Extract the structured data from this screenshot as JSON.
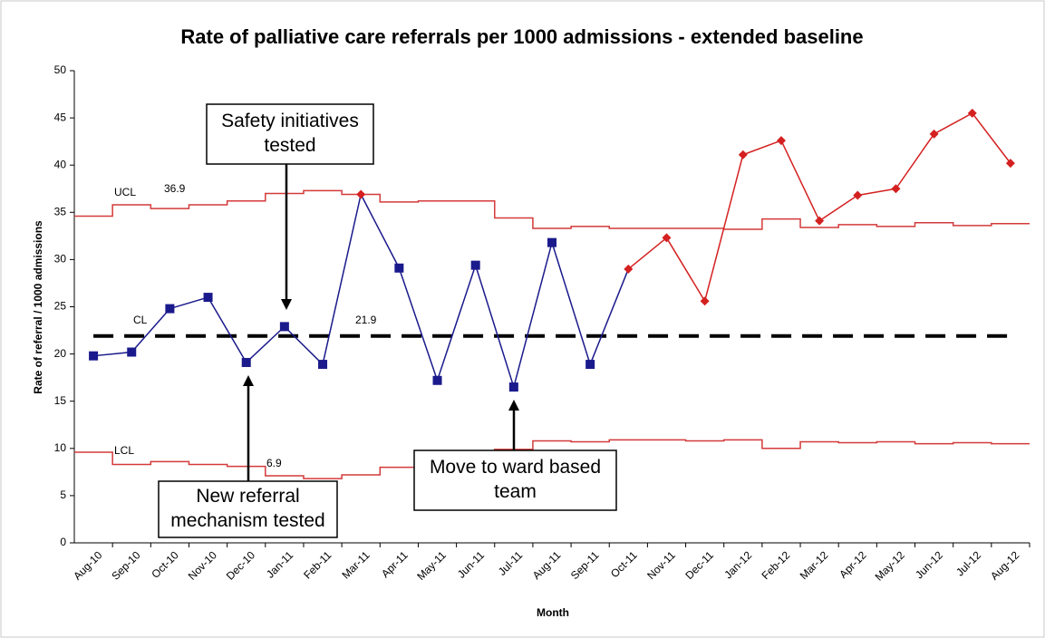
{
  "chart_data": {
    "type": "line",
    "title": "Rate of palliative care referrals per 1000 admissions - extended baseline",
    "x_label": "Month",
    "y_label": "Rate of referral / 1000 admissions",
    "categories": [
      "Aug-10",
      "Sep-10",
      "Oct-10",
      "Nov-10",
      "Dec-10",
      "Jan-11",
      "Feb-11",
      "Mar-11",
      "Apr-11",
      "May-11",
      "Jun-11",
      "Jul-11",
      "Aug-11",
      "Sep-11",
      "Oct-11",
      "Nov-11",
      "Dec-11",
      "Jan-12",
      "Feb-12",
      "Mar-12",
      "Apr-12",
      "May-12",
      "Jun-12",
      "Jul-12",
      "Aug-12"
    ],
    "series": [
      {
        "color": "#1a1a8c",
        "signal_color": "#d42020",
        "values": [
          19.8,
          20.2,
          24.8,
          26.0,
          19.1,
          22.9,
          18.9,
          36.9,
          29.1,
          17.2,
          29.4,
          16.5,
          31.8,
          18.9,
          29.0,
          32.3,
          25.6,
          41.1,
          42.6,
          34.1,
          36.8,
          37.5,
          43.3,
          45.5,
          40.2
        ],
        "signal": [
          false,
          false,
          false,
          false,
          false,
          false,
          false,
          true,
          false,
          false,
          false,
          false,
          false,
          false,
          true,
          true,
          true,
          true,
          true,
          true,
          true,
          true,
          true,
          true,
          true
        ]
      }
    ],
    "control_limits": {
      "color": "#d43a3a",
      "ucl": {
        "label": "UCL",
        "value_label": "36.9",
        "values": [
          34.6,
          35.8,
          35.4,
          35.8,
          36.2,
          37.0,
          37.3,
          36.9,
          36.1,
          36.2,
          36.2,
          34.4,
          33.3,
          33.5,
          33.3,
          33.3,
          33.3,
          33.2,
          34.3,
          33.4,
          33.7,
          33.5,
          33.9,
          33.6,
          33.8
        ]
      },
      "lcl": {
        "label": "LCL",
        "value_label": "6.9",
        "values": [
          9.6,
          8.3,
          8.6,
          8.3,
          8.1,
          7.1,
          6.8,
          7.2,
          8.0,
          8.1,
          8.1,
          9.9,
          10.8,
          10.7,
          10.9,
          10.9,
          10.8,
          10.9,
          10.0,
          10.7,
          10.6,
          10.7,
          10.5,
          10.6,
          10.5
        ]
      },
      "cl": {
        "label": "CL",
        "value_label": "21.9",
        "value": 21.9
      }
    },
    "annotations": [
      {
        "lines": [
          "Safety initiatives",
          "tested"
        ]
      },
      {
        "lines": [
          "New referral",
          "mechanism tested"
        ]
      },
      {
        "lines": [
          "Move to ward based",
          "team"
        ]
      }
    ],
    "ylim": [
      0,
      50
    ],
    "yticks": [
      0,
      5,
      10,
      15,
      20,
      25,
      30,
      35,
      40,
      45,
      50
    ]
  }
}
